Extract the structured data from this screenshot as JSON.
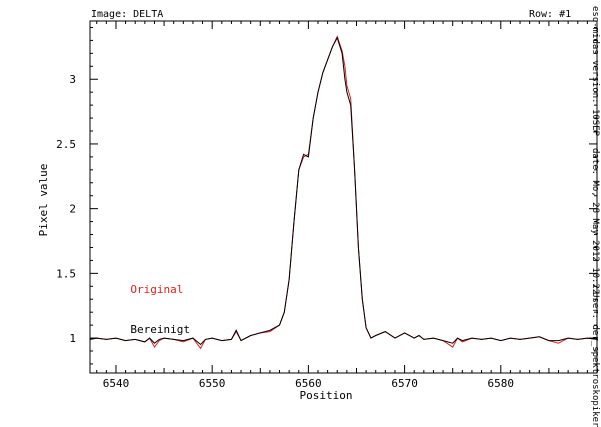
{
  "header": {
    "image_label": "Image: DELTA",
    "row_label": "Row: #1"
  },
  "side_info": {
    "version": "eso-midas version: 10SEP",
    "date": "date: Mo, 28 May 2012 10:22",
    "user": "User: der_spektroskopiker"
  },
  "colors": {
    "original": "#e02020",
    "cleaned": "#000000",
    "axis": "#000000"
  },
  "chart_data": {
    "type": "line",
    "xlabel": "Position",
    "ylabel": "Pixel value",
    "xlim": [
      6537.3,
      6590
    ],
    "ylim": [
      0.73,
      3.45
    ],
    "x_ticks": [
      6540,
      6550,
      6560,
      6570,
      6580
    ],
    "y_ticks": [
      1,
      1.5,
      2,
      2.5,
      3
    ],
    "y_tick_labels": [
      "1",
      "1.5",
      "2",
      "2.5",
      "3"
    ],
    "annotations": [
      {
        "text": "Original",
        "color": "#e02020",
        "x": 6541.5,
        "y": 1.35
      },
      {
        "text": "Bereinigt",
        "color": "#000000",
        "x": 6541.5,
        "y": 1.04
      }
    ],
    "series": [
      {
        "name": "Original",
        "color": "#e02020",
        "points": [
          [
            6537.3,
            0.99
          ],
          [
            6538,
            1.0
          ],
          [
            6539,
            0.99
          ],
          [
            6540,
            1.0
          ],
          [
            6541,
            0.98
          ],
          [
            6542,
            0.99
          ],
          [
            6543,
            0.97
          ],
          [
            6543.5,
            1.0
          ],
          [
            6544,
            0.93
          ],
          [
            6544.5,
            0.98
          ],
          [
            6545,
            1.0
          ],
          [
            6546,
            0.99
          ],
          [
            6547,
            0.97
          ],
          [
            6548,
            1.0
          ],
          [
            6548.8,
            0.92
          ],
          [
            6549.3,
            0.99
          ],
          [
            6550,
            1.0
          ],
          [
            6551,
            0.98
          ],
          [
            6552,
            0.99
          ],
          [
            6552.5,
            1.05
          ],
          [
            6553,
            0.98
          ],
          [
            6554,
            1.02
          ],
          [
            6555,
            1.04
          ],
          [
            6556,
            1.05
          ],
          [
            6557,
            1.1
          ],
          [
            6557.5,
            1.2
          ],
          [
            6558,
            1.45
          ],
          [
            6558.5,
            1.9
          ],
          [
            6559,
            2.3
          ],
          [
            6559.5,
            2.4
          ],
          [
            6560,
            2.42
          ],
          [
            6560.5,
            2.7
          ],
          [
            6561,
            2.9
          ],
          [
            6561.5,
            3.05
          ],
          [
            6562,
            3.15
          ],
          [
            6562.5,
            3.25
          ],
          [
            6563,
            3.33
          ],
          [
            6563.5,
            3.22
          ],
          [
            6563.8,
            3.1
          ],
          [
            6564,
            2.95
          ],
          [
            6564.4,
            2.85
          ],
          [
            6564.8,
            2.3
          ],
          [
            6565.2,
            1.7
          ],
          [
            6565.6,
            1.3
          ],
          [
            6566,
            1.08
          ],
          [
            6566.5,
            1.0
          ],
          [
            6567,
            1.02
          ],
          [
            6568,
            1.05
          ],
          [
            6569,
            1.0
          ],
          [
            6570,
            1.04
          ],
          [
            6571,
            1.0
          ],
          [
            6571.5,
            1.02
          ],
          [
            6572,
            0.99
          ],
          [
            6573,
            1.0
          ],
          [
            6574,
            0.98
          ],
          [
            6575,
            0.93
          ],
          [
            6575.5,
            1.0
          ],
          [
            6576,
            0.97
          ],
          [
            6577,
            1.0
          ],
          [
            6578,
            0.99
          ],
          [
            6579,
            1.0
          ],
          [
            6580,
            0.98
          ],
          [
            6581,
            1.0
          ],
          [
            6582,
            0.99
          ],
          [
            6583,
            1.0
          ],
          [
            6584,
            1.01
          ],
          [
            6585,
            0.98
          ],
          [
            6586,
            0.96
          ],
          [
            6587,
            1.0
          ],
          [
            6588,
            0.99
          ],
          [
            6589,
            1.0
          ],
          [
            6590,
            0.99
          ]
        ]
      },
      {
        "name": "Bereinigt",
        "color": "#000000",
        "points": [
          [
            6537.3,
            0.99
          ],
          [
            6538,
            1.0
          ],
          [
            6539,
            0.99
          ],
          [
            6540,
            1.0
          ],
          [
            6541,
            0.98
          ],
          [
            6542,
            0.99
          ],
          [
            6543,
            0.97
          ],
          [
            6543.5,
            1.0
          ],
          [
            6544,
            0.96
          ],
          [
            6544.5,
            0.99
          ],
          [
            6545,
            1.0
          ],
          [
            6546,
            0.99
          ],
          [
            6547,
            0.98
          ],
          [
            6548,
            1.0
          ],
          [
            6548.8,
            0.95
          ],
          [
            6549.3,
            0.99
          ],
          [
            6550,
            1.0
          ],
          [
            6551,
            0.98
          ],
          [
            6552,
            0.99
          ],
          [
            6552.5,
            1.06
          ],
          [
            6553,
            0.98
          ],
          [
            6554,
            1.02
          ],
          [
            6555,
            1.04
          ],
          [
            6556,
            1.06
          ],
          [
            6557,
            1.1
          ],
          [
            6557.5,
            1.2
          ],
          [
            6558,
            1.45
          ],
          [
            6558.5,
            1.9
          ],
          [
            6559,
            2.3
          ],
          [
            6559.5,
            2.42
          ],
          [
            6560,
            2.4
          ],
          [
            6560.5,
            2.7
          ],
          [
            6561,
            2.9
          ],
          [
            6561.5,
            3.05
          ],
          [
            6562,
            3.15
          ],
          [
            6562.5,
            3.25
          ],
          [
            6563,
            3.32
          ],
          [
            6563.5,
            3.2
          ],
          [
            6563.8,
            3.0
          ],
          [
            6564,
            2.9
          ],
          [
            6564.4,
            2.8
          ],
          [
            6564.8,
            2.3
          ],
          [
            6565.2,
            1.7
          ],
          [
            6565.6,
            1.3
          ],
          [
            6566,
            1.08
          ],
          [
            6566.5,
            1.0
          ],
          [
            6567,
            1.02
          ],
          [
            6568,
            1.05
          ],
          [
            6569,
            1.0
          ],
          [
            6570,
            1.04
          ],
          [
            6571,
            1.0
          ],
          [
            6571.5,
            1.02
          ],
          [
            6572,
            0.99
          ],
          [
            6573,
            1.0
          ],
          [
            6574,
            0.98
          ],
          [
            6575,
            0.96
          ],
          [
            6575.5,
            1.0
          ],
          [
            6576,
            0.98
          ],
          [
            6577,
            1.0
          ],
          [
            6578,
            0.99
          ],
          [
            6579,
            1.0
          ],
          [
            6580,
            0.98
          ],
          [
            6581,
            1.0
          ],
          [
            6582,
            0.99
          ],
          [
            6583,
            1.0
          ],
          [
            6584,
            1.01
          ],
          [
            6585,
            0.98
          ],
          [
            6586,
            0.98
          ],
          [
            6587,
            1.0
          ],
          [
            6588,
            0.99
          ],
          [
            6589,
            1.0
          ],
          [
            6590,
            0.99
          ]
        ]
      }
    ]
  }
}
